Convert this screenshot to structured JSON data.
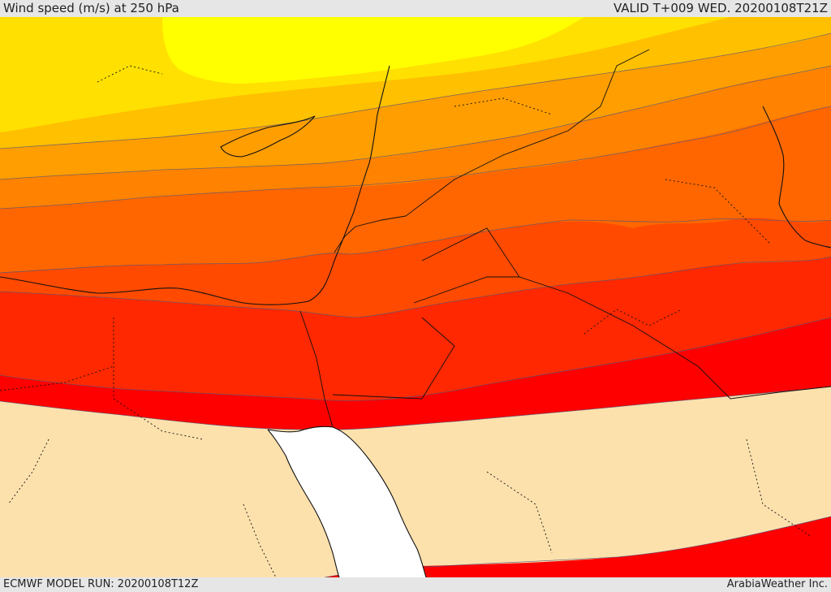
{
  "header": {
    "title": "Wind speed (m/s) at 250 hPa",
    "valid": "VALID T+009 WED. 20200108T21Z"
  },
  "footer": {
    "model_run": "ECMWF MODEL RUN: 20200108T12Z",
    "credit": "ArabiaWeather Inc."
  },
  "map": {
    "variable": "wind speed",
    "units": "m/s",
    "level": "250 hPa",
    "colors": {
      "band_1": "#ffff00",
      "band_2": "#ffe000",
      "band_3": "#ffc000",
      "band_4": "#ff9e00",
      "band_5": "#ff8200",
      "band_6": "#ff6600",
      "band_7": "#ff4a00",
      "band_8": "#ff2800",
      "band_9": "#ff0000",
      "land_low": "#fde1ad",
      "sea": "#ffffff"
    }
  }
}
